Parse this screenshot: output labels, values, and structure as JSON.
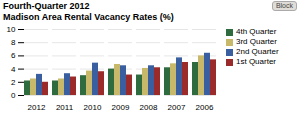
{
  "chart_data": {
    "type": "bar",
    "title": "Madison Area Rental Vacancy Rates (%)",
    "annotations": [
      "Fourth-Quarter 2012",
      "Block"
    ],
    "categories": [
      "2012",
      "2011",
      "2010",
      "2009",
      "2008",
      "2007",
      "2006"
    ],
    "series": [
      {
        "name": "4th Quarter",
        "color": "#2E6B3E",
        "values": [
          2.2,
          2.2,
          3.0,
          4.0,
          3.1,
          4.2,
          5.0
        ]
      },
      {
        "name": "3rd Quarter",
        "color": "#C8B86A",
        "values": [
          2.5,
          2.5,
          3.7,
          4.7,
          4.1,
          4.8,
          6.0
        ]
      },
      {
        "name": "2nd Quarter",
        "color": "#3A5FA0",
        "values": [
          3.2,
          3.3,
          4.9,
          4.5,
          4.5,
          5.7,
          6.4
        ]
      },
      {
        "name": "1st Quarter",
        "color": "#9B2B2B",
        "values": [
          2.0,
          2.8,
          3.6,
          3.1,
          4.2,
          5.0,
          5.4
        ]
      }
    ],
    "ylim": [
      0,
      10
    ],
    "yticks": [
      0,
      2,
      4,
      6,
      8,
      10
    ],
    "grid": true,
    "legend": "right"
  }
}
